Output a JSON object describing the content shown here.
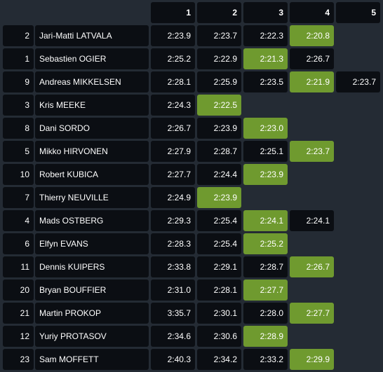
{
  "table": {
    "columns": [
      "1",
      "2",
      "3",
      "4",
      "5"
    ],
    "highlight_color": "#6f9a2f",
    "rows": [
      {
        "number": "2",
        "driver": "Jari-Matti LATVALA",
        "times": [
          {
            "text": "2:23.9"
          },
          {
            "text": "2:23.7"
          },
          {
            "text": "2:22.3"
          },
          {
            "text": "2:20.8",
            "highlight": true
          }
        ]
      },
      {
        "number": "1",
        "driver": "Sebastien OGIER",
        "times": [
          {
            "text": "2:25.2"
          },
          {
            "text": "2:22.9"
          },
          {
            "text": "2:21.3",
            "highlight": true
          },
          {
            "text": "2:26.7"
          }
        ]
      },
      {
        "number": "9",
        "driver": "Andreas MIKKELSEN",
        "times": [
          {
            "text": "2:28.1"
          },
          {
            "text": "2:25.9"
          },
          {
            "text": "2:23.5"
          },
          {
            "text": "2:21.9",
            "highlight": true
          },
          {
            "text": "2:23.7"
          }
        ]
      },
      {
        "number": "3",
        "driver": "Kris MEEKE",
        "times": [
          {
            "text": "2:24.3"
          },
          {
            "text": "2:22.5",
            "highlight": true
          }
        ]
      },
      {
        "number": "8",
        "driver": "Dani SORDO",
        "times": [
          {
            "text": "2:26.7"
          },
          {
            "text": "2:23.9"
          },
          {
            "text": "2:23.0",
            "highlight": true
          }
        ]
      },
      {
        "number": "5",
        "driver": "Mikko HIRVONEN",
        "times": [
          {
            "text": "2:27.9"
          },
          {
            "text": "2:28.7"
          },
          {
            "text": "2:25.1"
          },
          {
            "text": "2:23.7",
            "highlight": true
          }
        ]
      },
      {
        "number": "10",
        "driver": "Robert KUBICA",
        "times": [
          {
            "text": "2:27.7"
          },
          {
            "text": "2:24.4"
          },
          {
            "text": "2:23.9",
            "highlight": true
          }
        ]
      },
      {
        "number": "7",
        "driver": "Thierry NEUVILLE",
        "times": [
          {
            "text": "2:24.9"
          },
          {
            "text": "2:23.9",
            "highlight": true
          }
        ]
      },
      {
        "number": "4",
        "driver": "Mads OSTBERG",
        "times": [
          {
            "text": "2:29.3"
          },
          {
            "text": "2:25.4"
          },
          {
            "text": "2:24.1",
            "highlight": true
          },
          {
            "text": "2:24.1"
          }
        ]
      },
      {
        "number": "6",
        "driver": "Elfyn EVANS",
        "times": [
          {
            "text": "2:28.3"
          },
          {
            "text": "2:25.4"
          },
          {
            "text": "2:25.2",
            "highlight": true
          }
        ]
      },
      {
        "number": "11",
        "driver": "Dennis KUIPERS",
        "times": [
          {
            "text": "2:33.8"
          },
          {
            "text": "2:29.1"
          },
          {
            "text": "2:28.7"
          },
          {
            "text": "2:26.7",
            "highlight": true
          }
        ]
      },
      {
        "number": "20",
        "driver": "Bryan BOUFFIER",
        "times": [
          {
            "text": "2:31.0"
          },
          {
            "text": "2:28.1"
          },
          {
            "text": "2:27.7",
            "highlight": true
          }
        ]
      },
      {
        "number": "21",
        "driver": "Martin PROKOP",
        "times": [
          {
            "text": "3:35.7"
          },
          {
            "text": "2:30.1"
          },
          {
            "text": "2:28.0"
          },
          {
            "text": "2:27.7",
            "highlight": true
          }
        ]
      },
      {
        "number": "12",
        "driver": "Yuriy PROTASOV",
        "times": [
          {
            "text": "2:34.6"
          },
          {
            "text": "2:30.6"
          },
          {
            "text": "2:28.9",
            "highlight": true
          }
        ]
      },
      {
        "number": "23",
        "driver": "Sam MOFFETT",
        "times": [
          {
            "text": "2:40.3"
          },
          {
            "text": "2:34.2"
          },
          {
            "text": "2:33.2"
          },
          {
            "text": "2:29.9",
            "highlight": true
          }
        ]
      }
    ]
  }
}
